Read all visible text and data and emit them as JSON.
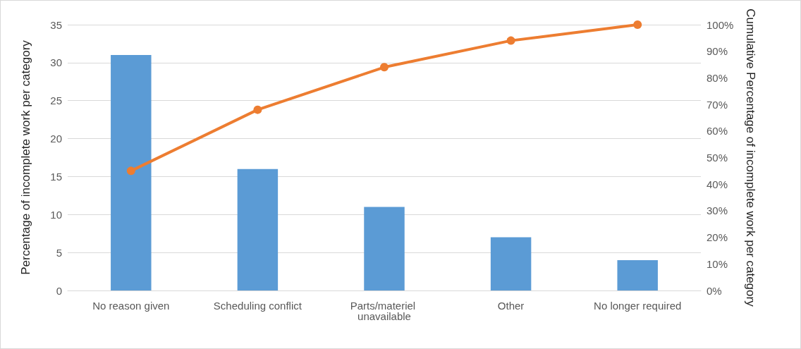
{
  "chart_data": {
    "type": "bar",
    "categories": [
      "No reason given",
      "Scheduling conflict",
      "Parts/materiel unavailable",
      "Other",
      "No longer required"
    ],
    "series": [
      {
        "color": "#5b9bd5",
        "values": [
          31,
          16,
          11,
          7,
          4
        ]
      },
      {
        "type": "line",
        "axis": "y2",
        "color": "#ed7d31",
        "marker": "circle",
        "values": [
          45,
          68,
          84,
          94,
          100
        ]
      }
    ],
    "ylabel": "Percentage of incomplete work per category",
    "y2label": "Cumulative Percentage of incomplete work per category",
    "ylim": [
      0,
      35
    ],
    "yticks": [
      0,
      5,
      10,
      15,
      20,
      25,
      30,
      35
    ],
    "y2lim": [
      0,
      100
    ],
    "y2ticks": [
      {
        "value": 0,
        "label": "0%"
      },
      {
        "value": 10,
        "label": "10%"
      },
      {
        "value": 20,
        "label": "20%"
      },
      {
        "value": 30,
        "label": "30%"
      },
      {
        "value": 40,
        "label": "40%"
      },
      {
        "value": 50,
        "label": "50%"
      },
      {
        "value": 60,
        "label": "60%"
      },
      {
        "value": 70,
        "label": "70%"
      },
      {
        "value": 80,
        "label": "80%"
      },
      {
        "value": 90,
        "label": "90%"
      },
      {
        "value": 100,
        "label": "100%"
      }
    ],
    "grid": "y"
  }
}
